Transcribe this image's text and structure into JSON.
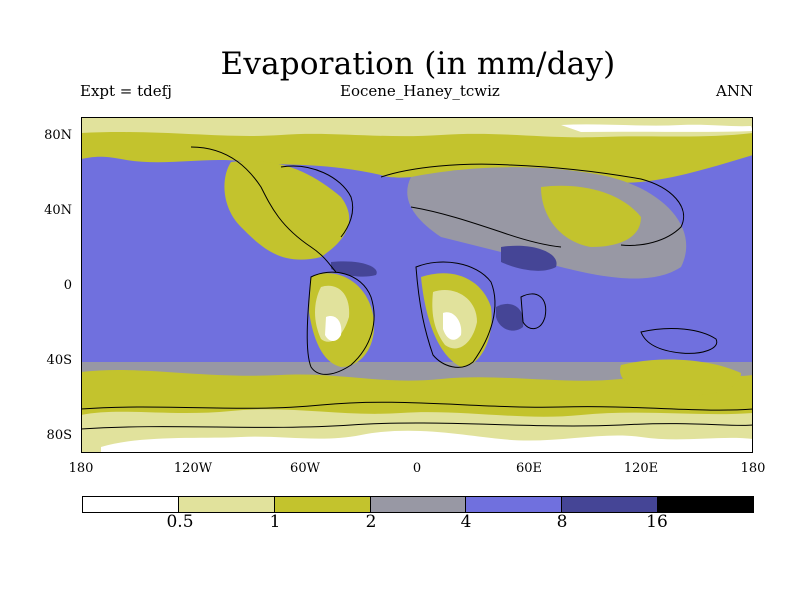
{
  "title": "Evaporation (in mm/day)",
  "left_string": "Expt = tdefj",
  "center_string": "Eocene_Haney_tcwiz",
  "right_string": "ANN",
  "lat_labels": [
    "80N",
    "40N",
    "0",
    "40S",
    "80S"
  ],
  "lon_labels": [
    "180",
    "120W",
    "60W",
    "0",
    "60E",
    "120E",
    "180"
  ],
  "colorbar": {
    "levels": [
      "0.5",
      "1",
      "2",
      "4",
      "8",
      "16"
    ],
    "colors": [
      "#ffffff",
      "#e1e29c",
      "#c3c32d",
      "#9898a4",
      "#7070de",
      "#454596",
      "#000000"
    ]
  }
}
